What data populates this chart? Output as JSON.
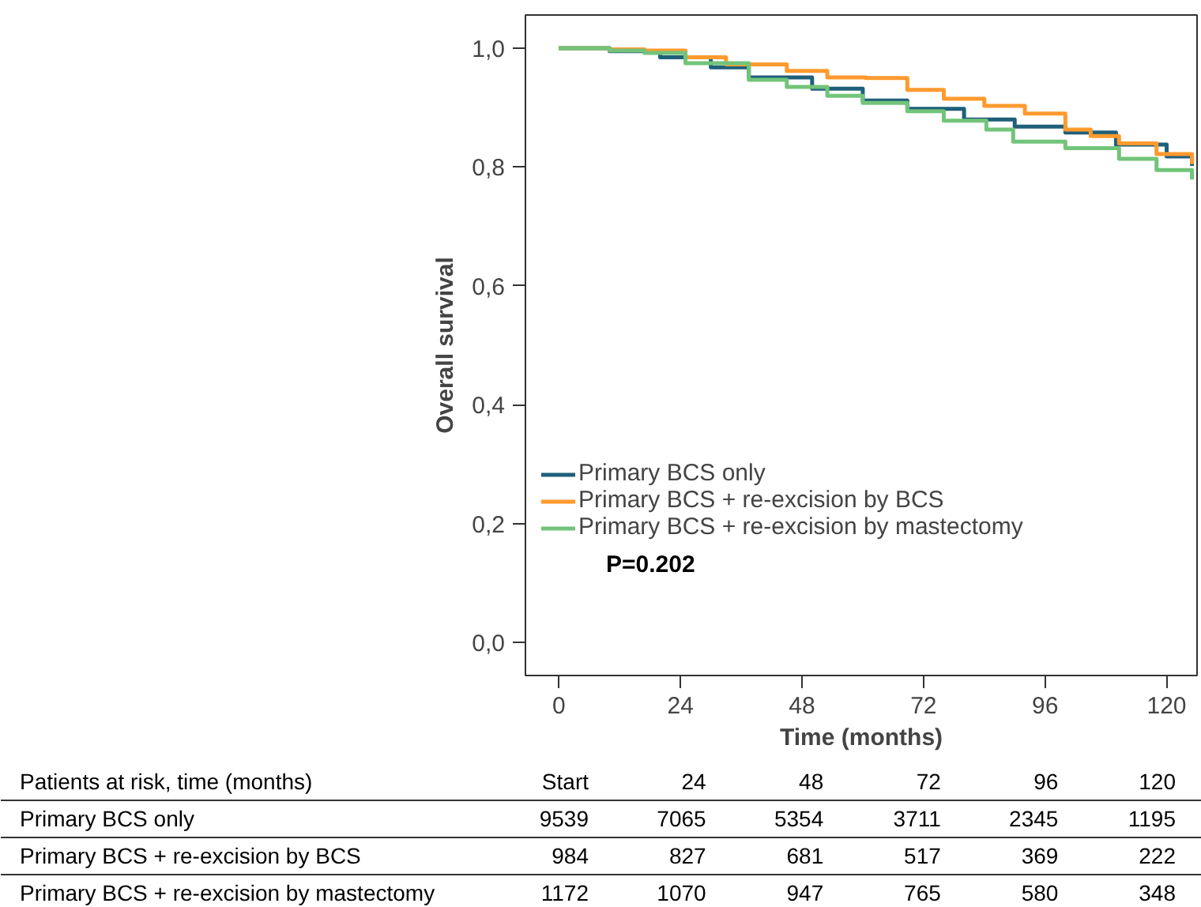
{
  "chart_data": {
    "type": "step",
    "xlabel": "Time (months)",
    "ylabel": "Overall survival",
    "xlim": [
      -6.6,
      126
    ],
    "ylim": [
      -0.056,
      1.056
    ],
    "xticks": [
      0,
      24,
      48,
      72,
      96,
      120
    ],
    "yticks": [
      {
        "value": 0,
        "label": "0,0"
      },
      {
        "value": 0.2,
        "label": "0,2"
      },
      {
        "value": 0.4,
        "label": "0,4"
      },
      {
        "value": 0.6,
        "label": "0,6"
      },
      {
        "value": 0.8,
        "label": "0,8"
      },
      {
        "value": 1,
        "label": "1,0"
      }
    ],
    "grid": false,
    "legend": "bottom",
    "series": [
      {
        "name": "Primary BCS only",
        "color": "#1f5f7a",
        "x": [
          0,
          10,
          20,
          30,
          37.5,
          50,
          60,
          68.8,
          80,
          90,
          100,
          110,
          120,
          125
        ],
        "values": [
          1.0,
          0.995,
          0.985,
          0.968,
          0.951,
          0.932,
          0.912,
          0.898,
          0.88,
          0.868,
          0.858,
          0.838,
          0.818,
          0.802
        ]
      },
      {
        "name": "Primary BCS + re-excision by BCS",
        "color": "#ff9a2e",
        "x": [
          0,
          10,
          16.9,
          25,
          33,
          45,
          53,
          60.6,
          68.8,
          76,
          84,
          92,
          100,
          105,
          110.6,
          118,
          125
        ],
        "values": [
          1.0,
          0.998,
          0.996,
          0.985,
          0.973,
          0.962,
          0.951,
          0.95,
          0.93,
          0.915,
          0.903,
          0.89,
          0.863,
          0.852,
          0.84,
          0.822,
          0.805
        ]
      },
      {
        "name": "Primary BCS + re-excision by mastectomy",
        "color": "#72c47a",
        "x": [
          0,
          10,
          16.9,
          25,
          37.5,
          45,
          53,
          60,
          68.8,
          76,
          84.4,
          89.7,
          100,
          110.6,
          118,
          125
        ],
        "values": [
          1.0,
          0.996,
          0.992,
          0.975,
          0.947,
          0.935,
          0.92,
          0.908,
          0.894,
          0.878,
          0.863,
          0.843,
          0.832,
          0.814,
          0.795,
          0.779
        ]
      }
    ],
    "annotations": [
      "P=0.202",
      "Patients at risk, time (months)",
      "Start",
      "24",
      "48",
      "72",
      "96",
      "120",
      "Primary BCS only",
      "9539",
      "7065",
      "5354",
      "3711",
      "2345",
      "1195",
      "Primary BCS + re-excision by BCS",
      "984",
      "827",
      "681",
      "517",
      "369",
      "222",
      "Primary BCS + re-excision by mastectomy",
      "1172",
      "1070",
      "947",
      "765",
      "580",
      "348"
    ]
  }
}
